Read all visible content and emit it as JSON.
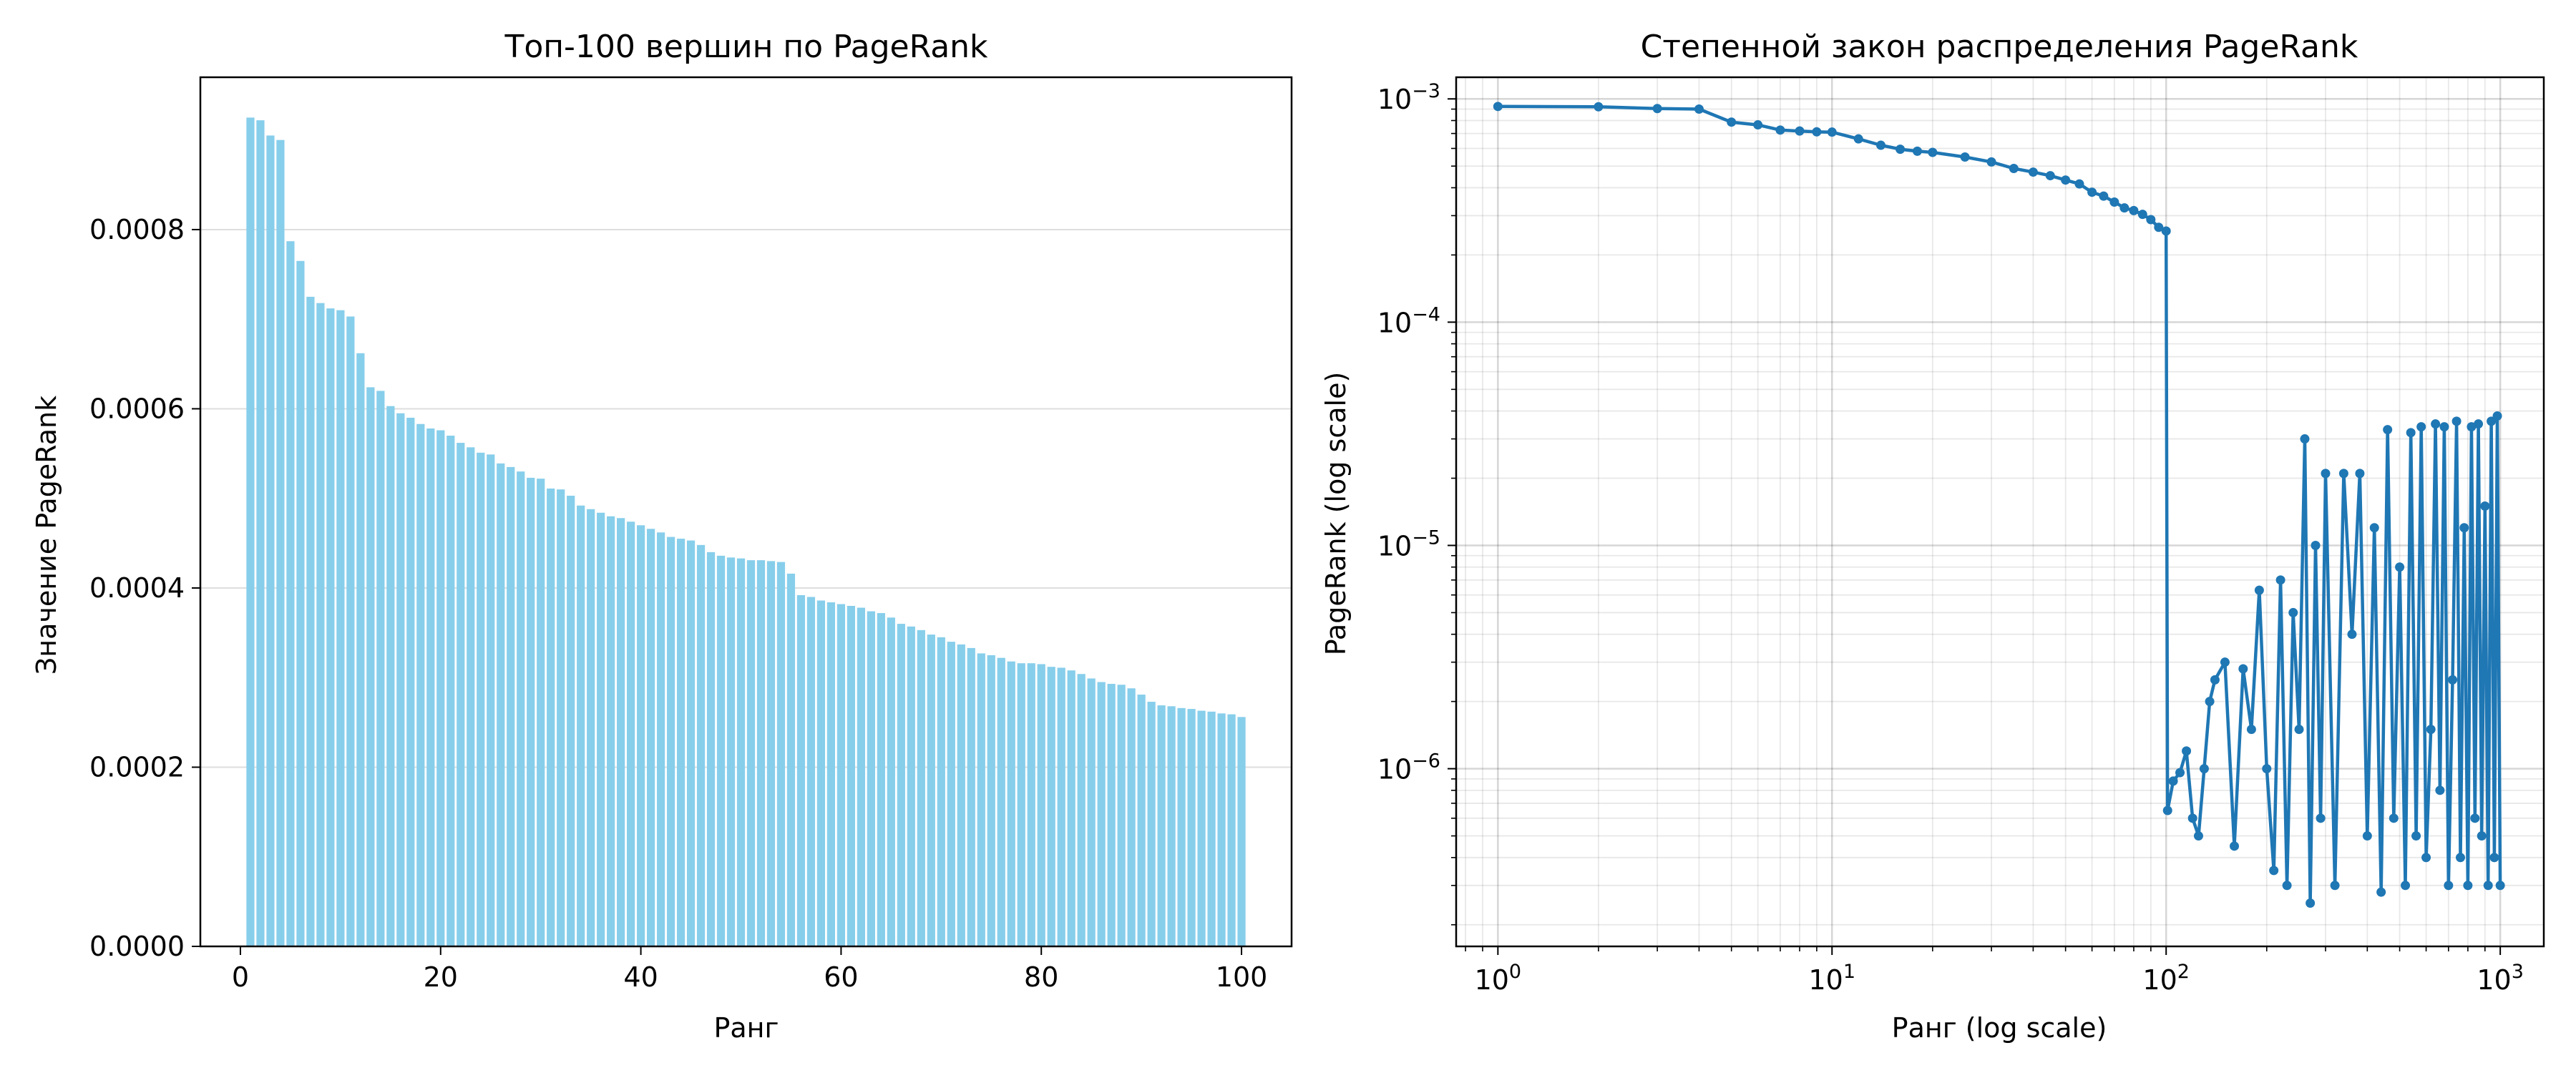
{
  "chart_data": [
    {
      "type": "bar",
      "title": "Топ-100 вершин по PageRank",
      "xlabel": "Ранг",
      "ylabel": "Значение PageRank",
      "xlim": [
        -4,
        105
      ],
      "ylim": [
        0,
        0.00097
      ],
      "xticks": [
        0,
        20,
        40,
        60,
        80,
        100
      ],
      "xtick_labels": [
        "0",
        "20",
        "40",
        "60",
        "80",
        "100"
      ],
      "yticks": [
        0,
        0.0002,
        0.0004,
        0.0006,
        0.0008
      ],
      "ytick_labels": [
        "0.0000",
        "0.0002",
        "0.0004",
        "0.0006",
        "0.0008"
      ],
      "grid": "y",
      "bar_color": "#87ceeb",
      "x": [
        1,
        2,
        3,
        4,
        5,
        6,
        7,
        8,
        9,
        10,
        11,
        12,
        13,
        14,
        15,
        16,
        17,
        18,
        19,
        20,
        21,
        22,
        23,
        24,
        25,
        26,
        27,
        28,
        29,
        30,
        31,
        32,
        33,
        34,
        35,
        36,
        37,
        38,
        39,
        40,
        41,
        42,
        43,
        44,
        45,
        46,
        47,
        48,
        49,
        50,
        51,
        52,
        53,
        54,
        55,
        56,
        57,
        58,
        59,
        60,
        61,
        62,
        63,
        64,
        65,
        66,
        67,
        68,
        69,
        70,
        71,
        72,
        73,
        74,
        75,
        76,
        77,
        78,
        79,
        80,
        81,
        82,
        83,
        84,
        85,
        86,
        87,
        88,
        89,
        90,
        91,
        92,
        93,
        94,
        95,
        96,
        97,
        98,
        99,
        100
      ],
      "values": [
        0.000925,
        0.000922,
        0.000905,
        0.0009,
        0.000787,
        0.000765,
        0.000725,
        0.000718,
        0.000712,
        0.00071,
        0.000703,
        0.000662,
        0.000624,
        0.00062,
        0.000603,
        0.000595,
        0.00059,
        0.000583,
        0.000578,
        0.000576,
        0.00057,
        0.000562,
        0.000557,
        0.000551,
        0.000549,
        0.000539,
        0.000535,
        0.00053,
        0.000523,
        0.000522,
        0.000511,
        0.00051,
        0.000503,
        0.000492,
        0.000488,
        0.000484,
        0.00048,
        0.000478,
        0.000474,
        0.00047,
        0.000466,
        0.000462,
        0.000457,
        0.000455,
        0.000453,
        0.000448,
        0.00044,
        0.000436,
        0.000434,
        0.000433,
        0.000431,
        0.000431,
        0.00043,
        0.000429,
        0.000416,
        0.000392,
        0.00039,
        0.000386,
        0.000384,
        0.000382,
        0.00038,
        0.000378,
        0.000374,
        0.000372,
        0.000367,
        0.00036,
        0.000357,
        0.000353,
        0.000348,
        0.000345,
        0.00034,
        0.000337,
        0.000333,
        0.000327,
        0.000325,
        0.000322,
        0.000318,
        0.000316,
        0.000316,
        0.000315,
        0.000312,
        0.000311,
        0.000308,
        0.000304,
        0.000299,
        0.000295,
        0.000293,
        0.000292,
        0.000288,
        0.000281,
        0.000273,
        0.000269,
        0.000268,
        0.000266,
        0.000265,
        0.000263,
        0.000262,
        0.00026,
        0.000259,
        0.000256
      ]
    },
    {
      "type": "line",
      "title": "Степенной закон распределения PageRank",
      "xlabel": "Ранг (log scale)",
      "ylabel": "PageRank (log scale)",
      "xscale": "log",
      "yscale": "log",
      "xlim": [
        0.75,
        1350
      ],
      "ylim": [
        1.6e-07,
        0.00125
      ],
      "xticks": [
        1,
        10,
        100,
        1000
      ],
      "xtick_labels": [
        {
          "base": "10",
          "exp": "0"
        },
        {
          "base": "10",
          "exp": "1"
        },
        {
          "base": "10",
          "exp": "2"
        },
        {
          "base": "10",
          "exp": "3"
        }
      ],
      "yticks": [
        1e-06,
        1e-05,
        0.0001,
        0.001
      ],
      "ytick_labels": [
        {
          "base": "10",
          "exp": "−6"
        },
        {
          "base": "10",
          "exp": "−5"
        },
        {
          "base": "10",
          "exp": "−4"
        },
        {
          "base": "10",
          "exp": "−3"
        }
      ],
      "grid": "both (major and minor)",
      "line_color": "#1f77b4",
      "marker": "o",
      "series": [
        {
          "x": [
            1,
            2,
            3,
            4,
            5,
            6,
            7,
            8,
            9,
            10,
            12,
            14,
            16,
            18,
            20,
            25,
            30,
            35,
            40,
            45,
            50,
            55,
            60,
            65,
            70,
            75,
            80,
            85,
            90,
            95,
            100,
            101,
            105,
            110,
            115,
            120,
            125,
            130,
            135,
            140,
            150,
            160,
            170,
            180,
            190,
            200,
            210,
            220,
            230,
            240,
            250,
            260,
            270,
            280,
            290,
            300,
            320,
            340,
            360,
            380,
            400,
            420,
            440,
            460,
            480,
            500,
            520,
            540,
            560,
            580,
            600,
            620,
            640,
            660,
            680,
            700,
            720,
            740,
            760,
            780,
            800,
            820,
            840,
            860,
            880,
            900,
            920,
            940,
            960,
            980,
            1000
          ],
          "y": [
            0.000925,
            0.000922,
            0.000905,
            0.0009,
            0.000787,
            0.000765,
            0.000725,
            0.000718,
            0.000712,
            0.00071,
            0.000662,
            0.00062,
            0.000595,
            0.000583,
            0.000576,
            0.000549,
            0.000522,
            0.000488,
            0.00047,
            0.000453,
            0.000433,
            0.000416,
            0.000382,
            0.000367,
            0.000345,
            0.000325,
            0.000316,
            0.000304,
            0.000288,
            0.000266,
            0.000256,
            6.5e-07,
            8.8e-07,
            9.6e-07,
            1.2e-06,
            6e-07,
            5e-07,
            1e-06,
            2e-06,
            2.5e-06,
            3e-06,
            4.5e-07,
            2.8e-06,
            1.5e-06,
            6.3e-06,
            1e-06,
            3.5e-07,
            7e-06,
            3e-07,
            5e-06,
            1.5e-06,
            3e-05,
            2.5e-07,
            1e-05,
            6e-07,
            2.1e-05,
            3e-07,
            2.1e-05,
            4e-06,
            2.1e-05,
            5e-07,
            1.2e-05,
            2.8e-07,
            3.3e-05,
            6e-07,
            8e-06,
            3e-07,
            3.2e-05,
            5e-07,
            3.4e-05,
            4e-07,
            1.5e-06,
            3.5e-05,
            8e-07,
            3.4e-05,
            3e-07,
            2.5e-06,
            3.6e-05,
            4e-07,
            1.2e-05,
            3e-07,
            3.4e-05,
            6e-07,
            3.5e-05,
            5e-07,
            1.5e-05,
            3e-07,
            3.6e-05,
            4e-07,
            3.8e-05,
            3e-07
          ]
        }
      ]
    }
  ]
}
